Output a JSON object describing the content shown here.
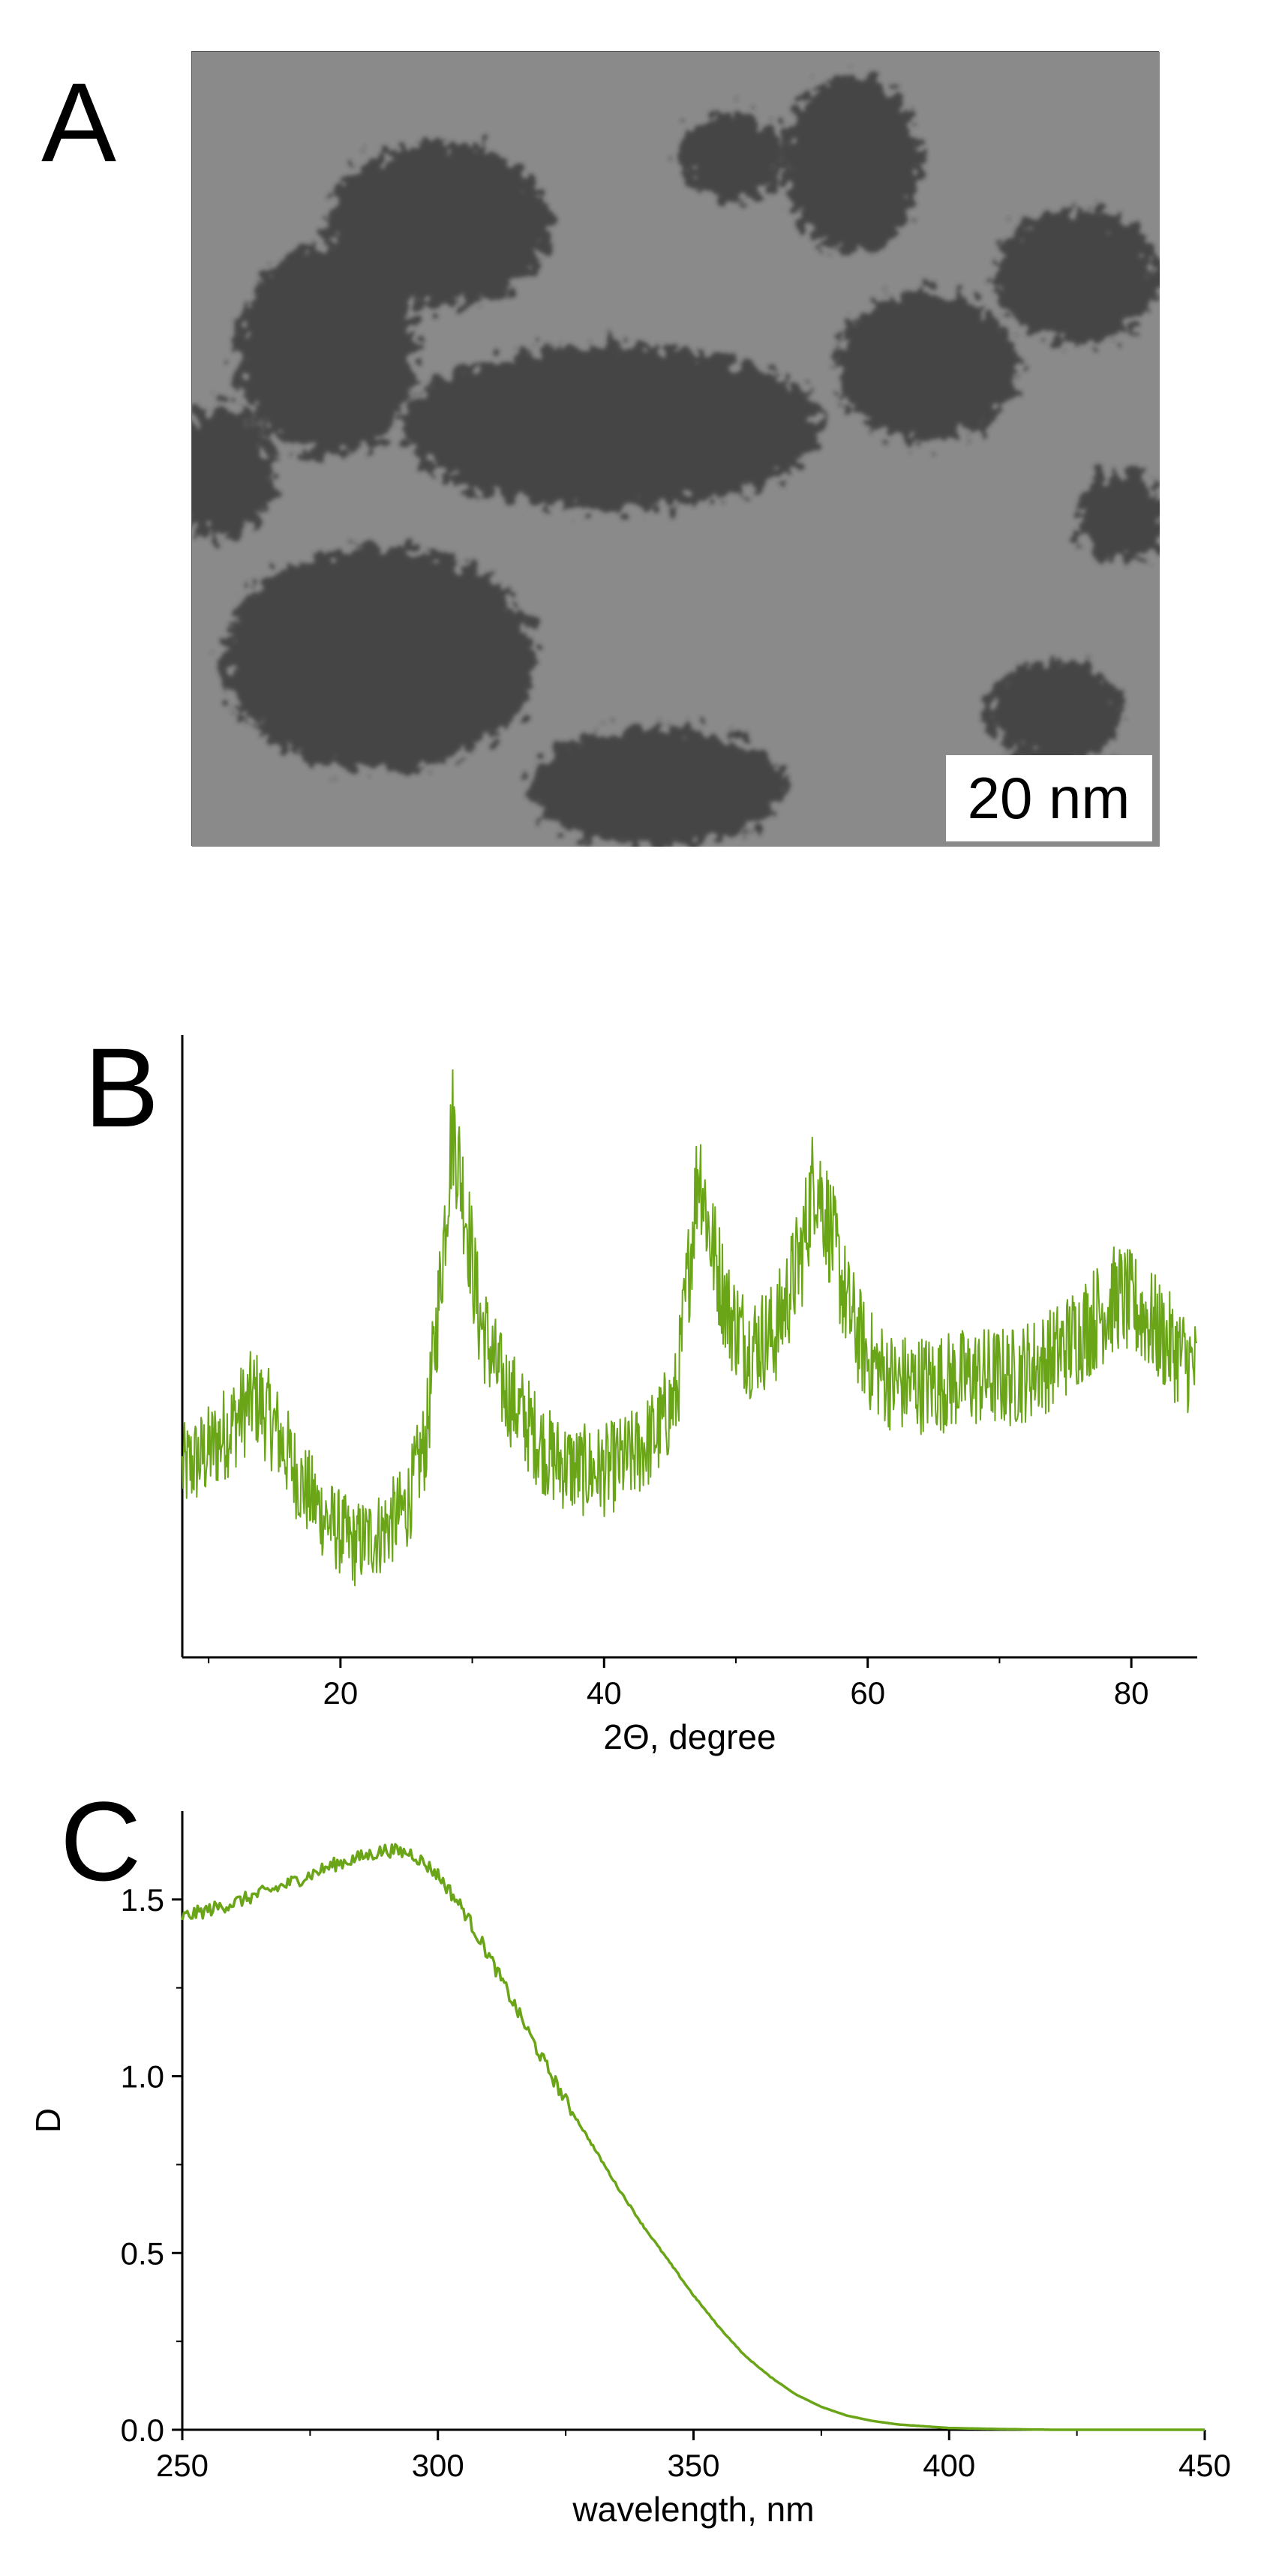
{
  "panels": {
    "a": {
      "letter": "A",
      "scale_bar": "20 nm"
    },
    "b": {
      "letter": "B"
    },
    "c": {
      "letter": "C"
    }
  },
  "colors": {
    "series": "#6aa517",
    "axis": "#000000",
    "tem_background": "#8a8a8a",
    "tem_particles": "#2e2e2e"
  },
  "chart_data": [
    {
      "panel": "B",
      "type": "line",
      "title": "",
      "xlabel": "2Θ, degree",
      "ylabel": "",
      "xlim": [
        8,
        85
      ],
      "ylim": [
        0,
        1
      ],
      "x_ticks": [
        20,
        40,
        60,
        80
      ],
      "y_ticks": [],
      "grid": false,
      "legend": "none",
      "noisy": true,
      "x": [
        8,
        10,
        12,
        13.5,
        15,
        17,
        19,
        21,
        23,
        25,
        26.5,
        27.5,
        28.5,
        29.5,
        30.5,
        32,
        34,
        36,
        38,
        40,
        42,
        44,
        45.5,
        46.5,
        47.2,
        48,
        49.5,
        51,
        53,
        55,
        56,
        57,
        58.5,
        60,
        62,
        65,
        68,
        71,
        74,
        77,
        79,
        81,
        83,
        85
      ],
      "values": [
        0.3,
        0.33,
        0.38,
        0.42,
        0.37,
        0.28,
        0.22,
        0.18,
        0.2,
        0.24,
        0.35,
        0.58,
        0.86,
        0.72,
        0.55,
        0.45,
        0.38,
        0.32,
        0.3,
        0.3,
        0.32,
        0.36,
        0.42,
        0.64,
        0.8,
        0.68,
        0.55,
        0.5,
        0.52,
        0.65,
        0.78,
        0.7,
        0.56,
        0.48,
        0.44,
        0.44,
        0.45,
        0.45,
        0.48,
        0.54,
        0.58,
        0.55,
        0.5,
        0.46
      ]
    },
    {
      "panel": "C",
      "type": "line",
      "title": "",
      "xlabel": "wavelength, nm",
      "ylabel": "D",
      "xlim": [
        250,
        450
      ],
      "ylim": [
        0,
        1.75
      ],
      "x_ticks": [
        250,
        300,
        350,
        400,
        450
      ],
      "y_ticks": [
        "0.0",
        "0.5",
        "1.0",
        "1.5"
      ],
      "grid": false,
      "legend": "none",
      "x": [
        250,
        260,
        270,
        280,
        290,
        295,
        300,
        305,
        310,
        315,
        320,
        325,
        330,
        335,
        340,
        345,
        350,
        355,
        360,
        365,
        370,
        375,
        380,
        385,
        390,
        400,
        410,
        420,
        450
      ],
      "values": [
        1.45,
        1.49,
        1.54,
        1.6,
        1.64,
        1.63,
        1.57,
        1.47,
        1.34,
        1.2,
        1.06,
        0.93,
        0.81,
        0.69,
        0.58,
        0.48,
        0.38,
        0.29,
        0.21,
        0.15,
        0.1,
        0.065,
        0.04,
        0.025,
        0.015,
        0.005,
        0.002,
        0.0,
        0.0
      ]
    }
  ]
}
